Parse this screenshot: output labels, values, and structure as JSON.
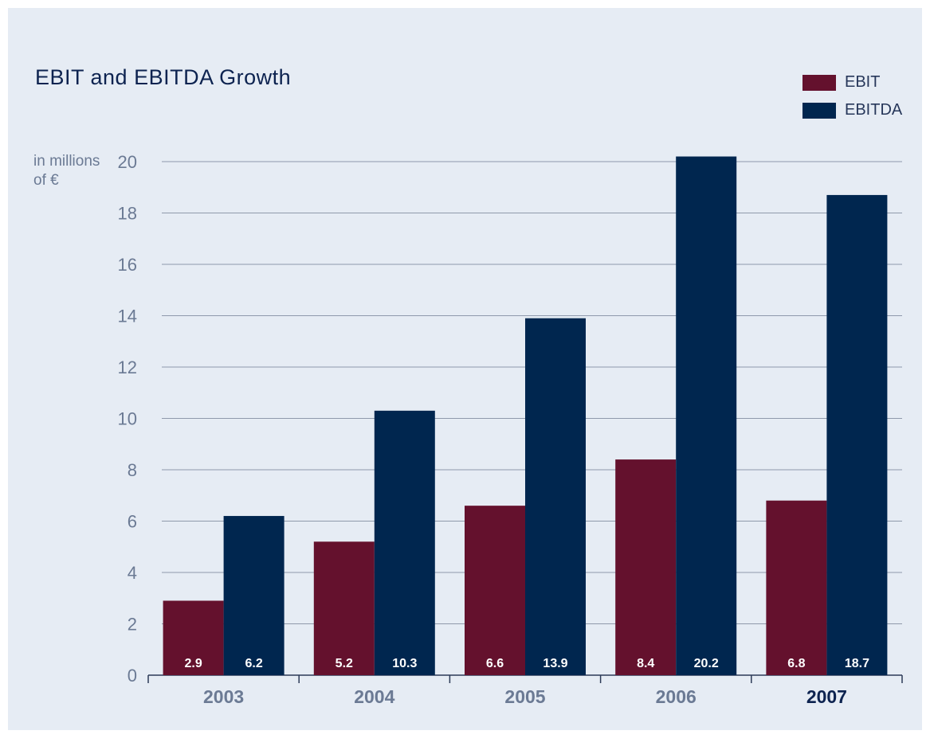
{
  "colors": {
    "background": "#e6ecf4",
    "ebit": "#64112d",
    "ebitda": "#00264f",
    "gridline": "#8f99ab",
    "axis": "#2c3a57",
    "highlight_year": "#0d2350"
  },
  "chart_data": {
    "type": "bar",
    "title": "EBIT and EBITDA Growth",
    "ylabel": "in millions of €",
    "ylabel_lines": [
      "in millions",
      "of €"
    ],
    "categories": [
      "2003",
      "2004",
      "2005",
      "2006",
      "2007"
    ],
    "highlight_category": "2007",
    "series": [
      {
        "name": "EBIT",
        "values": [
          2.9,
          5.2,
          6.6,
          8.4,
          6.8
        ],
        "labels": [
          "2.9",
          "5.2",
          "6.6",
          "8.4",
          "6.8"
        ]
      },
      {
        "name": "EBITDA",
        "values": [
          6.2,
          10.3,
          13.9,
          20.2,
          18.7
        ],
        "labels": [
          "6.2",
          "10.3",
          "13.9",
          "20.2",
          "18.7"
        ]
      }
    ],
    "ylim": [
      0,
      20
    ],
    "yticks": [
      0,
      2,
      4,
      6,
      8,
      10,
      12,
      14,
      16,
      18,
      20
    ],
    "grid": true,
    "legend": "top-right"
  }
}
